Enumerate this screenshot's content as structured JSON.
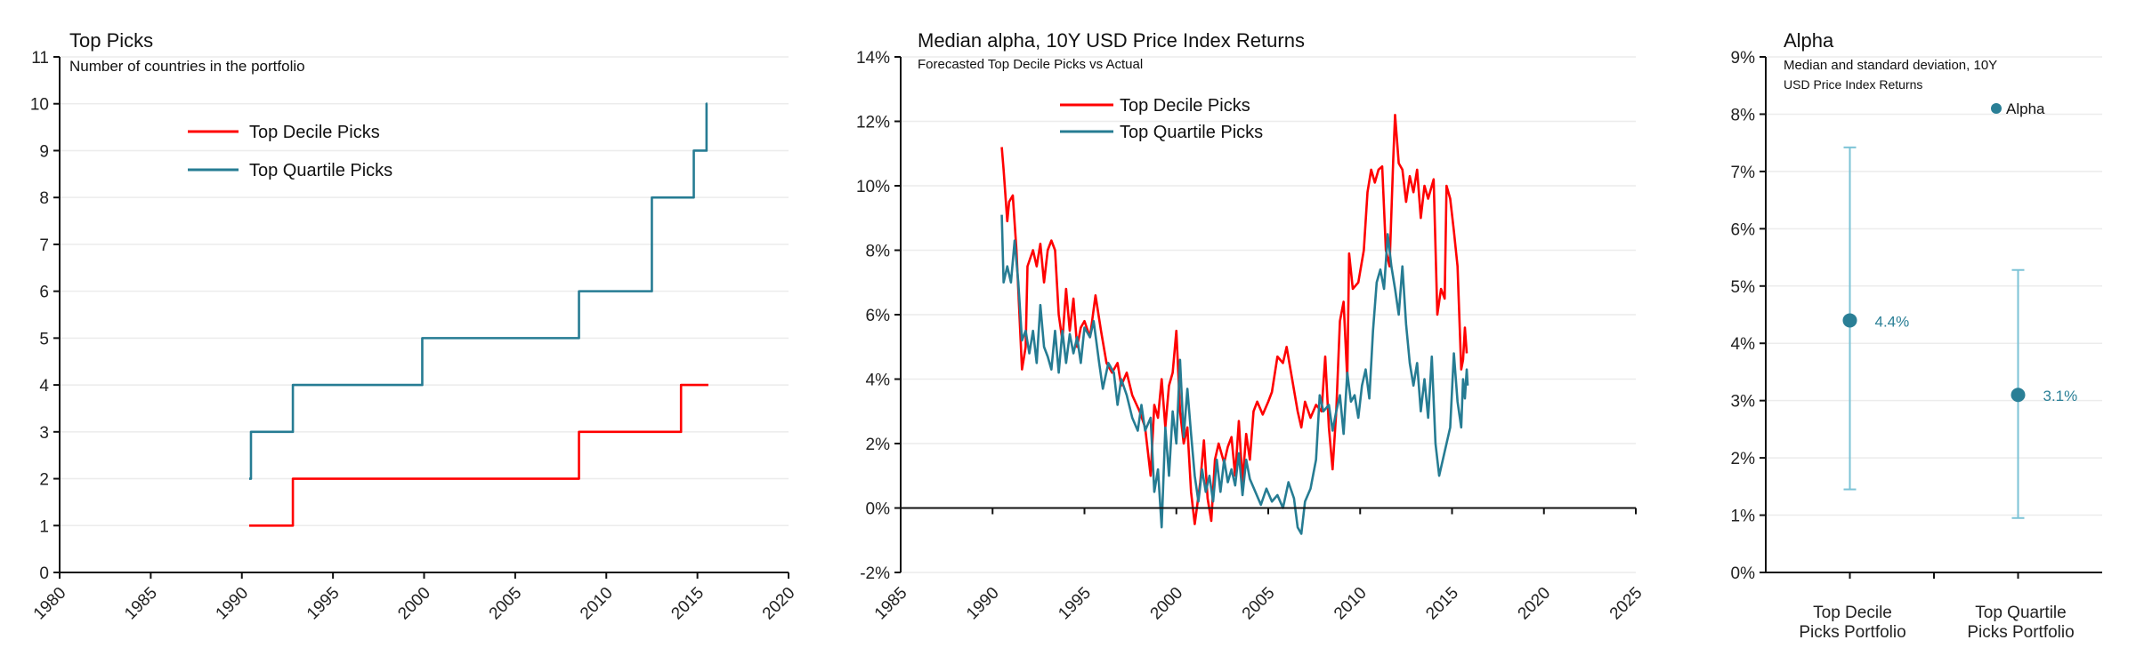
{
  "colors": {
    "decile": "#ff0000",
    "quartile": "#267c93",
    "errorbar": "#7cc3d6",
    "dot": "#2a7f96",
    "grid": "#ececec"
  },
  "chart_data": [
    {
      "type": "line",
      "title": "Top Picks",
      "subtitle": "Number of countries in the portfolio",
      "xlim": [
        1980,
        2020
      ],
      "ylim": [
        0,
        11
      ],
      "x_ticks": [
        1980,
        1985,
        1990,
        1995,
        2000,
        2005,
        2010,
        2015,
        2020
      ],
      "y_ticks": [
        0,
        1,
        2,
        3,
        4,
        5,
        6,
        7,
        8,
        9,
        10,
        11
      ],
      "grid": true,
      "step": true,
      "legend_position": "top-left",
      "series": [
        {
          "name": "Top Decile Picks",
          "key": "decile",
          "x": [
            1990.4,
            1992.8,
            2008.5,
            2014.1,
            2015.6
          ],
          "y": [
            1,
            2,
            3,
            4,
            4
          ]
        },
        {
          "name": "Top Quartile Picks",
          "key": "quartile",
          "x": [
            1990.4,
            1990.5,
            1992.8,
            1999.9,
            2008.5,
            2012.5,
            2014.8,
            2015.5,
            2015.55
          ],
          "y": [
            2,
            3,
            4,
            5,
            6,
            8,
            9,
            10,
            10
          ]
        }
      ]
    },
    {
      "type": "line",
      "title": "Median alpha, 10Y USD Price Index Returns",
      "subtitle": "Forecasted Top Decile Picks vs Actual",
      "xlim": [
        1985,
        2025
      ],
      "ylim": [
        -2,
        14
      ],
      "x_ticks": [
        1985,
        1990,
        1995,
        2000,
        2005,
        2010,
        2015,
        2020,
        2025
      ],
      "y_ticks": [
        -2,
        0,
        2,
        4,
        6,
        8,
        10,
        12,
        14
      ],
      "y_tick_labels": [
        "-2%",
        "0%",
        "2%",
        "4%",
        "6%",
        "8%",
        "10%",
        "12%",
        "14%"
      ],
      "grid": true,
      "legend_position": "top-center",
      "series": [
        {
          "name": "Top Decile Picks",
          "key": "decile",
          "x": [
            1990.5,
            1990.6,
            1990.8,
            1990.9,
            1991.1,
            1991.3,
            1991.6,
            1991.8,
            1991.9,
            1992.2,
            1992.4,
            1992.6,
            1992.8,
            1993.0,
            1993.2,
            1993.4,
            1993.6,
            1993.8,
            1994.0,
            1994.2,
            1994.4,
            1994.6,
            1994.8,
            1995.0,
            1995.3,
            1995.6,
            1995.9,
            1996.2,
            1996.5,
            1996.8,
            1997.0,
            1997.3,
            1997.6,
            1998.0,
            1998.3,
            1998.6,
            1998.8,
            1999.0,
            1999.2,
            1999.4,
            1999.6,
            1999.8,
            2000.0,
            2000.2,
            2000.4,
            2000.6,
            2000.8,
            2001.0,
            2001.3,
            2001.5,
            2001.7,
            2001.9,
            2002.1,
            2002.3,
            2002.6,
            2002.8,
            2003.0,
            2003.2,
            2003.4,
            2003.6,
            2003.8,
            2004.0,
            2004.2,
            2004.4,
            2004.7,
            2005.0,
            2005.2,
            2005.5,
            2005.8,
            2006.0,
            2006.3,
            2006.6,
            2006.8,
            2007.0,
            2007.3,
            2007.6,
            2007.9,
            2008.1,
            2008.3,
            2008.5,
            2008.7,
            2008.9,
            2009.1,
            2009.3,
            2009.4,
            2009.6,
            2009.9,
            2010.2,
            2010.4,
            2010.6,
            2010.8,
            2011.0,
            2011.2,
            2011.4,
            2011.6,
            2011.8,
            2011.9,
            2012.1,
            2012.3,
            2012.5,
            2012.7,
            2012.9,
            2013.1,
            2013.3,
            2013.5,
            2013.7,
            2014.0,
            2014.2,
            2014.4,
            2014.6,
            2014.7,
            2014.9,
            2015.1,
            2015.3,
            2015.5,
            2015.6,
            2015.7,
            2015.8
          ],
          "y": [
            11.2,
            10.5,
            8.9,
            9.5,
            9.7,
            8.0,
            4.3,
            5.0,
            7.5,
            8.0,
            7.5,
            8.2,
            7.0,
            8.0,
            8.3,
            8.0,
            6.0,
            5.2,
            6.8,
            5.5,
            6.5,
            5.0,
            5.6,
            5.8,
            5.3,
            6.6,
            5.5,
            4.5,
            4.2,
            4.5,
            3.8,
            4.2,
            3.5,
            3.0,
            2.5,
            1.0,
            3.2,
            2.8,
            4.0,
            2.5,
            3.8,
            4.2,
            5.5,
            3.0,
            2.0,
            2.5,
            0.5,
            -0.5,
            0.8,
            2.1,
            0.3,
            -0.4,
            1.5,
            2.0,
            1.4,
            1.9,
            2.2,
            1.0,
            2.7,
            0.8,
            2.3,
            1.5,
            3.0,
            3.3,
            2.9,
            3.3,
            3.6,
            4.7,
            4.5,
            5.0,
            4.0,
            3.0,
            2.5,
            3.3,
            2.8,
            3.2,
            3.0,
            4.7,
            2.5,
            1.2,
            3.0,
            5.8,
            6.4,
            4.0,
            7.9,
            6.8,
            7.0,
            8.0,
            9.8,
            10.5,
            10.1,
            10.5,
            10.6,
            8.0,
            7.5,
            10.8,
            12.2,
            10.7,
            10.5,
            9.5,
            10.3,
            9.8,
            10.5,
            9.0,
            10.0,
            9.6,
            10.2,
            6.0,
            6.8,
            6.5,
            10.0,
            9.6,
            8.6,
            7.5,
            4.3,
            4.6,
            5.6,
            4.8
          ]
        },
        {
          "name": "Top Quartile Picks",
          "key": "quartile",
          "x": [
            1990.5,
            1990.6,
            1990.8,
            1991.0,
            1991.2,
            1991.4,
            1991.6,
            1991.8,
            1992.0,
            1992.2,
            1992.4,
            1992.6,
            1992.8,
            1993.0,
            1993.2,
            1993.4,
            1993.6,
            1993.8,
            1994.0,
            1994.2,
            1994.4,
            1994.6,
            1994.8,
            1995.0,
            1995.3,
            1995.5,
            1995.8,
            1996.0,
            1996.3,
            1996.6,
            1996.8,
            1997.0,
            1997.3,
            1997.6,
            1997.9,
            1998.1,
            1998.3,
            1998.6,
            1998.8,
            1999.0,
            1999.2,
            1999.4,
            1999.6,
            1999.8,
            2000.0,
            2000.2,
            2000.4,
            2000.6,
            2000.8,
            2001.0,
            2001.2,
            2001.4,
            2001.6,
            2001.8,
            2002.0,
            2002.2,
            2002.4,
            2002.6,
            2002.8,
            2003.0,
            2003.2,
            2003.4,
            2003.6,
            2003.8,
            2004.0,
            2004.3,
            2004.6,
            2004.9,
            2005.2,
            2005.5,
            2005.8,
            2006.1,
            2006.4,
            2006.6,
            2006.8,
            2007.0,
            2007.3,
            2007.6,
            2007.8,
            2008.0,
            2008.3,
            2008.5,
            2008.7,
            2008.9,
            2009.1,
            2009.3,
            2009.5,
            2009.7,
            2009.9,
            2010.1,
            2010.3,
            2010.5,
            2010.7,
            2010.9,
            2011.1,
            2011.3,
            2011.5,
            2011.7,
            2011.9,
            2012.1,
            2012.3,
            2012.5,
            2012.7,
            2012.9,
            2013.1,
            2013.3,
            2013.5,
            2013.7,
            2013.9,
            2014.1,
            2014.3,
            2014.5,
            2014.7,
            2014.9,
            2015.1,
            2015.3,
            2015.5,
            2015.6,
            2015.7,
            2015.8,
            2015.85
          ],
          "y": [
            9.1,
            7.0,
            7.5,
            7.0,
            8.3,
            7.0,
            5.2,
            5.5,
            4.8,
            5.5,
            4.5,
            6.3,
            5.0,
            4.7,
            4.3,
            5.5,
            4.2,
            5.5,
            4.5,
            5.4,
            4.8,
            5.3,
            4.5,
            5.6,
            5.3,
            5.8,
            4.5,
            3.7,
            4.5,
            4.2,
            3.2,
            4.0,
            3.5,
            2.8,
            2.4,
            3.2,
            2.4,
            2.8,
            0.5,
            1.2,
            -0.6,
            2.5,
            1.0,
            3.0,
            2.0,
            4.6,
            2.2,
            3.7,
            2.3,
            1.0,
            0.2,
            1.2,
            0.5,
            1.0,
            0.2,
            1.5,
            0.5,
            1.5,
            0.8,
            1.2,
            0.7,
            1.7,
            0.4,
            1.5,
            0.9,
            0.5,
            0.1,
            0.6,
            0.2,
            0.4,
            0.0,
            0.8,
            0.3,
            -0.6,
            -0.8,
            0.2,
            0.6,
            1.5,
            3.5,
            3.0,
            3.2,
            2.4,
            3.0,
            3.5,
            2.3,
            4.2,
            3.3,
            3.5,
            2.8,
            3.8,
            4.3,
            3.4,
            5.5,
            7.0,
            7.4,
            6.8,
            8.5,
            7.5,
            6.8,
            6.0,
            7.5,
            5.7,
            4.5,
            3.8,
            4.5,
            3.0,
            4.0,
            2.8,
            4.7,
            2.0,
            1.0,
            1.5,
            2.0,
            2.5,
            4.8,
            3.3,
            2.5,
            4.0,
            3.4,
            4.3,
            3.8
          ]
        }
      ]
    },
    {
      "type": "scatter",
      "title": "Alpha",
      "subtitle_lines": [
        "Median and standard deviation, 10Y",
        "USD Price Index Returns"
      ],
      "ylim": [
        0,
        9
      ],
      "y_ticks": [
        0,
        1,
        2,
        3,
        4,
        5,
        6,
        7,
        8,
        9
      ],
      "y_tick_labels": [
        "0%",
        "1%",
        "2%",
        "3%",
        "4%",
        "5%",
        "6%",
        "7%",
        "8%",
        "9%"
      ],
      "grid": true,
      "legend_position": "top-right",
      "legend": "Alpha",
      "categories": [
        {
          "label_lines": [
            "Top Decile",
            "Picks Portfolio"
          ],
          "median": 4.4,
          "low": 1.45,
          "high": 7.42,
          "label": "4.4%"
        },
        {
          "label_lines": [
            "Top Quartile",
            "Picks Portfolio"
          ],
          "median": 3.1,
          "low": 0.95,
          "high": 5.28,
          "label": "3.1%"
        }
      ]
    }
  ]
}
